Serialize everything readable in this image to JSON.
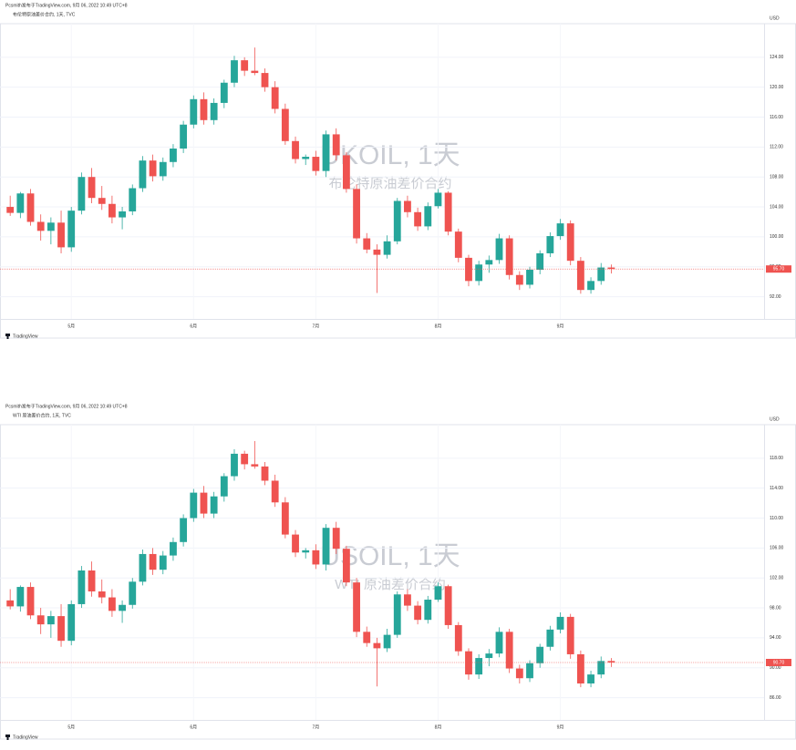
{
  "chart_data": [
    {
      "type": "candlestick",
      "header": "Pcsmith发布于TradingView.com, 9月 06, 2022 10:49 UTC+8",
      "title": "布伦特原油差价合约, 1天, TVC",
      "watermark": "UKOIL, 1天",
      "watermark_subtitle": "布伦特原油差价合约",
      "currency": "USD",
      "up_color": "#26a69a",
      "down_color": "#ef5350",
      "xlim": [
        -1,
        74
      ],
      "xticks": [
        {
          "value": 6,
          "label": "5月"
        },
        {
          "value": 18,
          "label": "6月"
        },
        {
          "value": 30,
          "label": "7月"
        },
        {
          "value": 42,
          "label": "8月"
        },
        {
          "value": 54,
          "label": "9月"
        }
      ],
      "ylim": [
        90,
        128
      ],
      "yticks": [
        {
          "value": 92,
          "label": "92.00"
        },
        {
          "value": 96,
          "label": "96.00"
        },
        {
          "value": 100,
          "label": "100.00"
        },
        {
          "value": 104,
          "label": "104.00"
        },
        {
          "value": 108,
          "label": "108.00"
        },
        {
          "value": 112,
          "label": "112.00"
        },
        {
          "value": 116,
          "label": "116.00"
        },
        {
          "value": 120,
          "label": "120.00"
        },
        {
          "value": 124,
          "label": "124.00"
        }
      ],
      "last_price": {
        "value": 95.7,
        "label": "95.70"
      },
      "candles": [
        [
          104,
          105.5,
          102.8,
          103.2
        ],
        [
          103.2,
          106,
          102.5,
          105.8
        ],
        [
          105.8,
          106.4,
          101.5,
          102
        ],
        [
          102,
          103,
          99.5,
          100.8
        ],
        [
          100.8,
          102.6,
          99,
          101.9
        ],
        [
          101.9,
          103.5,
          97.8,
          98.6
        ],
        [
          98.6,
          104,
          98,
          103.5
        ],
        [
          103.5,
          108.6,
          103,
          108
        ],
        [
          108,
          109.2,
          104.5,
          105.2
        ],
        [
          105.2,
          106.8,
          103.6,
          104.4
        ],
        [
          104.4,
          105.5,
          101.8,
          102.6
        ],
        [
          102.6,
          104,
          101,
          103.4
        ],
        [
          103.4,
          107,
          102.9,
          106.5
        ],
        [
          106.5,
          110.8,
          106,
          110.2
        ],
        [
          110.2,
          111,
          107.4,
          108.1
        ],
        [
          108.1,
          110.6,
          107.5,
          110
        ],
        [
          110,
          112.4,
          109.3,
          111.8
        ],
        [
          111.8,
          115.5,
          111.2,
          115
        ],
        [
          115,
          118.9,
          114.5,
          118.4
        ],
        [
          118.4,
          119.3,
          115,
          115.6
        ],
        [
          115.6,
          118.5,
          115,
          117.9
        ],
        [
          117.9,
          121,
          117.2,
          120.6
        ],
        [
          120.6,
          124.2,
          120,
          123.6
        ],
        [
          123.6,
          124,
          121.5,
          122.2
        ],
        [
          122.2,
          125.3,
          121.6,
          121.9
        ],
        [
          121.9,
          122.5,
          119.4,
          120
        ],
        [
          120,
          120.8,
          116.5,
          117.1
        ],
        [
          117.1,
          117.8,
          112.3,
          112.8
        ],
        [
          112.8,
          113.4,
          109.8,
          110.4
        ],
        [
          110.4,
          111,
          109.6,
          110.7
        ],
        [
          110.7,
          111.5,
          108.2,
          108.8
        ],
        [
          108.8,
          114.2,
          108,
          113.7
        ],
        [
          113.7,
          114.5,
          110.2,
          110.9
        ],
        [
          110.9,
          111.3,
          105.9,
          106.4
        ],
        [
          106.4,
          107,
          99.1,
          99.8
        ],
        [
          99.8,
          100.5,
          97.8,
          98.3
        ],
        [
          98.3,
          99,
          92.5,
          97.6
        ],
        [
          97.6,
          100.2,
          97.1,
          99.4
        ],
        [
          99.4,
          105.2,
          99,
          104.8
        ],
        [
          104.8,
          105.5,
          102.6,
          103.3
        ],
        [
          103.3,
          103.9,
          100.8,
          101.4
        ],
        [
          101.4,
          104.6,
          100.9,
          104.1
        ],
        [
          104.1,
          106.4,
          103.8,
          105.9
        ],
        [
          105.9,
          106.1,
          100.2,
          100.7
        ],
        [
          100.7,
          101.1,
          96.6,
          97.2
        ],
        [
          97.2,
          97.6,
          93.4,
          94.1
        ],
        [
          94.1,
          96.8,
          93.5,
          96.3
        ],
        [
          96.3,
          97.5,
          95.2,
          96.9
        ],
        [
          96.9,
          100.4,
          96.4,
          99.8
        ],
        [
          99.8,
          100.2,
          94.3,
          94.9
        ],
        [
          94.9,
          95.4,
          92.9,
          93.6
        ],
        [
          93.6,
          96,
          93.1,
          95.6
        ],
        [
          95.6,
          98.2,
          95,
          97.8
        ],
        [
          97.8,
          100.6,
          97.3,
          100.1
        ],
        [
          100.1,
          102.4,
          99.6,
          101.8
        ],
        [
          101.8,
          102.2,
          96.2,
          96.8
        ],
        [
          96.8,
          97.3,
          92.4,
          92.9
        ],
        [
          92.9,
          94.6,
          92.4,
          94.1
        ],
        [
          94.1,
          96.5,
          93.6,
          95.9
        ],
        [
          95.9,
          96.3,
          95.1,
          95.7
        ]
      ],
      "footer": "TradingView"
    },
    {
      "type": "candlestick",
      "header": "Pcsmith发布于TradingView.com, 9月 06, 2022 10:49 UTC+8",
      "title": "WTI 原油差价合约, 1天, TVC",
      "watermark": "USOIL, 1天",
      "watermark_subtitle": "WTI 原油差价合约",
      "currency": "USD",
      "up_color": "#26a69a",
      "down_color": "#ef5350",
      "xlim": [
        -1,
        74
      ],
      "xticks": [
        {
          "value": 6,
          "label": "5月"
        },
        {
          "value": 18,
          "label": "6月"
        },
        {
          "value": 30,
          "label": "7月"
        },
        {
          "value": 42,
          "label": "8月"
        },
        {
          "value": 54,
          "label": "9月"
        }
      ],
      "ylim": [
        84,
        122
      ],
      "yticks": [
        {
          "value": 86,
          "label": "86.00"
        },
        {
          "value": 90,
          "label": "90.00"
        },
        {
          "value": 94,
          "label": "94.00"
        },
        {
          "value": 98,
          "label": "98.00"
        },
        {
          "value": 102,
          "label": "102.00"
        },
        {
          "value": 106,
          "label": "106.00"
        },
        {
          "value": 110,
          "label": "110.00"
        },
        {
          "value": 114,
          "label": "114.00"
        },
        {
          "value": 118,
          "label": "118.00"
        }
      ],
      "last_price": {
        "value": 90.7,
        "label": "90.70"
      },
      "candles": [
        [
          99,
          100.5,
          97.8,
          98.2
        ],
        [
          98.2,
          101,
          97.5,
          100.8
        ],
        [
          100.8,
          101.4,
          96.5,
          97
        ],
        [
          97,
          98,
          94.5,
          95.8
        ],
        [
          95.8,
          97.6,
          94,
          96.9
        ],
        [
          96.9,
          98.5,
          92.8,
          93.6
        ],
        [
          93.6,
          99,
          93,
          98.5
        ],
        [
          98.5,
          103.6,
          98,
          103
        ],
        [
          103,
          104.2,
          99.5,
          100.2
        ],
        [
          100.2,
          101.8,
          98.6,
          99.4
        ],
        [
          99.4,
          100.5,
          96.8,
          97.6
        ],
        [
          97.6,
          99,
          96,
          98.4
        ],
        [
          98.4,
          102,
          97.9,
          101.5
        ],
        [
          101.5,
          105.8,
          101,
          105.2
        ],
        [
          105.2,
          106,
          102.4,
          103.1
        ],
        [
          103.1,
          105.6,
          102.5,
          105
        ],
        [
          105,
          107.4,
          104.3,
          106.8
        ],
        [
          106.8,
          110.5,
          106.2,
          110
        ],
        [
          110,
          113.9,
          109.5,
          113.4
        ],
        [
          113.4,
          114.3,
          110,
          110.6
        ],
        [
          110.6,
          113.5,
          110,
          112.9
        ],
        [
          112.9,
          116,
          112.2,
          115.6
        ],
        [
          115.6,
          119.2,
          115,
          118.6
        ],
        [
          118.6,
          119,
          116.5,
          117.2
        ],
        [
          117.2,
          120.3,
          116.6,
          116.9
        ],
        [
          116.9,
          117.5,
          114.4,
          115
        ],
        [
          115,
          115.8,
          111.5,
          112.1
        ],
        [
          112.1,
          112.8,
          107.3,
          107.8
        ],
        [
          107.8,
          108.4,
          104.8,
          105.4
        ],
        [
          105.4,
          106,
          104.6,
          105.7
        ],
        [
          105.7,
          106.5,
          103.2,
          103.8
        ],
        [
          103.8,
          109.2,
          103,
          108.7
        ],
        [
          108.7,
          109.5,
          105.2,
          105.9
        ],
        [
          105.9,
          106.3,
          100.9,
          101.4
        ],
        [
          101.4,
          102,
          94.1,
          94.8
        ],
        [
          94.8,
          95.5,
          92.8,
          93.3
        ],
        [
          93.3,
          94,
          87.5,
          92.6
        ],
        [
          92.6,
          95.2,
          92.1,
          94.4
        ],
        [
          94.4,
          100.2,
          94,
          99.8
        ],
        [
          99.8,
          100.5,
          97.6,
          98.3
        ],
        [
          98.3,
          98.9,
          95.8,
          96.4
        ],
        [
          96.4,
          99.6,
          95.9,
          99.1
        ],
        [
          99.1,
          101.4,
          98.8,
          100.9
        ],
        [
          100.9,
          101.1,
          95.2,
          95.7
        ],
        [
          95.7,
          96.1,
          91.6,
          92.2
        ],
        [
          92.2,
          92.6,
          88.4,
          89.1
        ],
        [
          89.1,
          91.8,
          88.5,
          91.3
        ],
        [
          91.3,
          92.5,
          90.2,
          91.9
        ],
        [
          91.9,
          95.4,
          91.4,
          94.8
        ],
        [
          94.8,
          95.2,
          89.3,
          89.9
        ],
        [
          89.9,
          90.4,
          87.9,
          88.6
        ],
        [
          88.6,
          91,
          88.1,
          90.6
        ],
        [
          90.6,
          93.2,
          90,
          92.8
        ],
        [
          92.8,
          95.6,
          92.3,
          95.1
        ],
        [
          95.1,
          97.4,
          94.6,
          96.8
        ],
        [
          96.8,
          97.2,
          91.2,
          91.8
        ],
        [
          91.8,
          92.3,
          87.4,
          87.9
        ],
        [
          87.9,
          89.6,
          87.4,
          89.1
        ],
        [
          89.1,
          91.5,
          88.6,
          90.9
        ],
        [
          90.9,
          91.3,
          90.1,
          90.7
        ]
      ],
      "footer": "TradingView"
    }
  ]
}
